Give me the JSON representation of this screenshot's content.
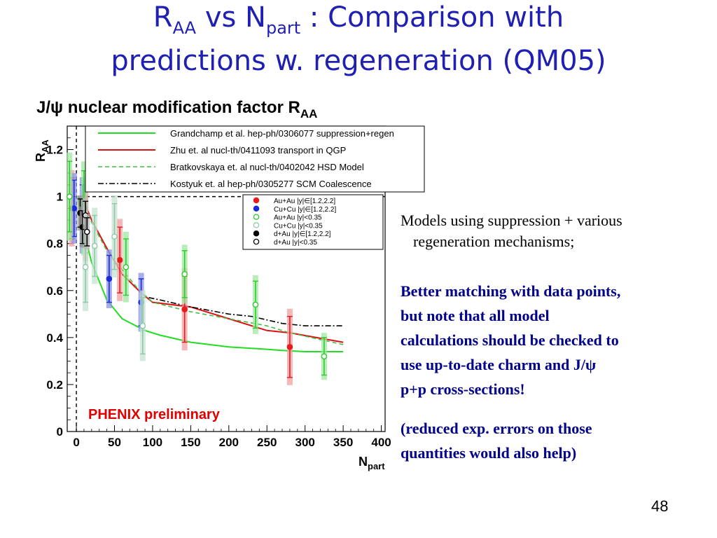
{
  "slide": {
    "title_line1_pre": "R",
    "title_line1_sub1": "AA",
    "title_line1_mid": " vs N",
    "title_line1_sub2": "part",
    "title_line1_post": " : Comparison with",
    "title_line2": "predictions w. regeneration (QM05)",
    "page_number": "48"
  },
  "notes": {
    "models_line1": "Models using suppression + various",
    "models_line2": "regeneration mechanisms;",
    "matching_line1": "Better matching with data points,",
    "matching_line2": "but note that all model",
    "matching_line3": "calculations should be checked to",
    "matching_line4": "use up-to-date charm and J/ψ",
    "matching_line5": "p+p cross-sections!",
    "reduced_line1": "(reduced exp. errors on those",
    "reduced_line2": "quantities would also help)"
  },
  "chart_data": {
    "type": "scatter",
    "title_pre": "J/ψ nuclear modification factor R",
    "title_sub": "AA",
    "xlabel": "N",
    "xlabel_sub": "part",
    "ylabel": "R",
    "ylabel_sub": "AA",
    "xlim": [
      -12,
      405
    ],
    "ylim": [
      0,
      1.3
    ],
    "xticks": [
      "0",
      "50",
      "100",
      "150",
      "200",
      "250",
      "300",
      "350",
      "400"
    ],
    "yticks": [
      "0",
      "0.2",
      "0.4",
      "0.6",
      "0.8",
      "1",
      "1.2"
    ],
    "annotation": "PHENIX preliminary",
    "colors": {
      "auau_fwd": "#e81b1b",
      "cucu_fwd": "#1a2bd6",
      "auau_mid": "#2ecc2e",
      "cucu_mid": "#8fc9a8",
      "dau": "#000000",
      "grandchamp": "#22dd22",
      "zhu": "#dd1111",
      "brat": "#44bb44",
      "kostyuk": "#000000",
      "annotation": "#e00000",
      "title": "#1f1fb4",
      "notes_blue": "#00008b"
    },
    "model_legend": [
      "Grandchamp et al. hep-ph/0306077 suppression+regen",
      "Zhu et. al nucl-th/0411093 transport in QGP",
      "Bratkovskaya et. al nucl-th/0402042 HSD Model",
      "Kostyuk et. al hep-ph/0305277 SCM Coalescence"
    ],
    "models": [
      {
        "x": [
          2,
          10,
          20,
          40,
          60,
          90,
          110,
          150,
          200,
          250,
          270,
          300,
          350
        ],
        "y": [
          1.0,
          0.85,
          0.72,
          0.56,
          0.48,
          0.43,
          0.41,
          0.38,
          0.36,
          0.35,
          0.345,
          0.34,
          0.34
        ]
      },
      {
        "x": [
          2,
          10,
          20,
          40,
          60,
          85,
          100,
          150,
          200,
          250,
          280,
          350
        ],
        "y": [
          1.0,
          0.98,
          0.9,
          0.78,
          0.67,
          0.59,
          0.55,
          0.53,
          0.48,
          0.43,
          0.42,
          0.38
        ]
      },
      {
        "x": [
          2,
          10,
          20,
          40,
          60,
          80,
          100,
          150,
          200,
          250,
          280,
          350
        ],
        "y": [
          1.0,
          0.97,
          0.89,
          0.77,
          0.69,
          0.61,
          0.55,
          0.51,
          0.48,
          0.45,
          0.42,
          0.37
        ]
      },
      {
        "x": [
          95,
          110,
          150,
          200,
          230,
          270,
          300,
          350
        ],
        "y": [
          0.57,
          0.56,
          0.53,
          0.5,
          0.49,
          0.46,
          0.45,
          0.45
        ]
      }
    ],
    "data_legend": [
      "Au+Au |y|∈[1.2,2.2]",
      "Cu+Cu |y|∈[1.2,2.2]",
      "Au+Au |y|<0.35",
      "Cu+Cu |y|<0.35",
      "d+Au |y|∈[1.2,2.2]",
      "d+Au |y|<0.35"
    ],
    "series": [
      {
        "name": "Au+Au |y|∈[1.2,2.2]",
        "points": [
          [
            -6,
            0.95,
            0.13
          ],
          [
            12,
            0.9,
            0.14
          ],
          [
            57,
            0.73,
            0.14
          ],
          [
            142,
            0.52,
            0.14
          ],
          [
            280,
            0.36,
            0.13
          ]
        ]
      },
      {
        "name": "Cu+Cu |y|∈[1.2,2.2]",
        "points": [
          [
            -3,
            0.95,
            0.12
          ],
          [
            8,
            0.92,
            0.13
          ],
          [
            43,
            0.65,
            0.1
          ],
          [
            85,
            0.55,
            0.1
          ]
        ]
      },
      {
        "name": "Au+Au |y|<0.35",
        "points": [
          [
            -9,
            1.0,
            0.15
          ],
          [
            10,
            0.95,
            0.16
          ],
          [
            65,
            0.7,
            0.12
          ],
          [
            142,
            0.67,
            0.1
          ],
          [
            235,
            0.54,
            0.1
          ],
          [
            325,
            0.32,
            0.08
          ]
        ]
      },
      {
        "name": "Cu+Cu |y|<0.35",
        "points": [
          [
            12,
            0.7,
            0.15
          ],
          [
            24,
            0.79,
            0.13
          ],
          [
            50,
            0.83,
            0.14
          ],
          [
            87,
            0.45,
            0.12
          ]
        ]
      },
      {
        "name": "d+Au |y|∈[1.2,2.2]",
        "points": [
          [
            5,
            0.93,
            0.06
          ],
          [
            8,
            0.87,
            0.07
          ]
        ]
      },
      {
        "name": "d+Au |y|<0.35",
        "points": [
          [
            12,
            0.92,
            0.06
          ],
          [
            14,
            0.85,
            0.06
          ]
        ]
      }
    ]
  }
}
